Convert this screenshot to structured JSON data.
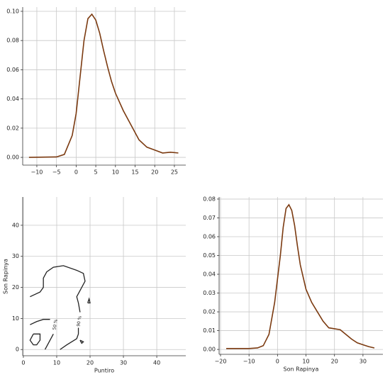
{
  "chart_data": [
    {
      "type": "line",
      "x": [
        -12,
        -5,
        -3,
        -1,
        0,
        1,
        2,
        3,
        4,
        5,
        6,
        7,
        8,
        9,
        10,
        12,
        14,
        16,
        18,
        20,
        22,
        24,
        26
      ],
      "series": [
        {
          "color": "#7b3a10",
          "values": [
            0,
            0.0003,
            0.002,
            0.015,
            0.03,
            0.055,
            0.08,
            0.095,
            0.098,
            0.094,
            0.085,
            0.073,
            0.062,
            0.052,
            0.044,
            0.032,
            0.022,
            0.012,
            0.007,
            0.005,
            0.003,
            0.0035,
            0.003
          ]
        }
      ],
      "xlim": [
        -13.6,
        27.9
      ],
      "ylim": [
        -0.0053,
        0.1029
      ],
      "xticks": [
        {
          "value": -10,
          "label": "−10"
        },
        {
          "value": -5,
          "label": "−5"
        },
        0,
        5,
        10,
        15,
        20,
        25
      ],
      "yticks": [
        {
          "value": 0,
          "label": "0.00"
        },
        {
          "value": 0.02,
          "label": "0.02"
        },
        {
          "value": 0.04,
          "label": "0.04"
        },
        {
          "value": 0.06,
          "label": "0.06"
        },
        {
          "value": 0.08,
          "label": "0.08"
        },
        {
          "value": 0.1,
          "label": "0.10"
        }
      ],
      "grid": true
    },
    {
      "type": "contour",
      "x_label": "Puntiro",
      "y_label": "Son Rapinya",
      "color": "#222222",
      "contours": [
        {
          "x": [
            2,
            5,
            6,
            6,
            7,
            9,
            12,
            16,
            18,
            18.5,
            17,
            16,
            16.5,
            17
          ],
          "y": [
            17,
            18.5,
            20,
            23,
            25,
            26.5,
            27,
            25.5,
            24.5,
            22,
            19,
            17,
            15,
            12
          ]
        },
        {
          "x": [
            2,
            4,
            6,
            8
          ],
          "y": [
            8,
            9,
            9.7,
            9.7
          ]
        },
        {
          "x": [
            3,
            5,
            5,
            4,
            3,
            2,
            3
          ],
          "y": [
            5,
            5,
            3,
            1.5,
            1.5,
            3,
            5
          ]
        },
        {
          "x": [
            6.5,
            7.5,
            8.5,
            9
          ],
          "y": [
            0,
            2,
            4,
            5
          ]
        },
        {
          "x": [
            11,
            13,
            16,
            16.5,
            16.5
          ],
          "y": [
            0,
            1.5,
            3.5,
            5,
            7
          ]
        },
        {
          "x": [
            17,
            18,
            17.5,
            17
          ],
          "y": [
            3,
            2.5,
            2,
            3
          ]
        },
        {
          "x": [
            19.3,
            19.7,
            20,
            19.3
          ],
          "y": [
            15,
            16.3,
            15,
            15
          ]
        }
      ],
      "level_labels": [
        {
          "text": "50 %",
          "x": 9.6,
          "y": 8
        },
        {
          "text": "90 %",
          "x": 16.8,
          "y": 9.1
        }
      ],
      "xlim": [
        -0.2,
        48.7
      ],
      "ylim": [
        -2,
        49.1
      ],
      "xticks": [
        0,
        10,
        20,
        30,
        40
      ],
      "yticks": [
        0,
        10,
        20,
        30,
        40
      ],
      "grid": true
    },
    {
      "type": "line",
      "x_label": "Son Rapinya",
      "x": [
        -18,
        -10,
        -7,
        -5,
        -3,
        -1,
        1,
        2,
        3,
        4,
        5,
        6,
        7,
        8,
        10,
        12,
        14,
        16,
        18,
        20,
        22,
        24,
        26,
        28,
        30,
        32,
        34
      ],
      "series": [
        {
          "color": "#7b3a10",
          "values": [
            0.0005,
            0.0005,
            0.0008,
            0.002,
            0.008,
            0.025,
            0.05,
            0.065,
            0.075,
            0.077,
            0.074,
            0.066,
            0.055,
            0.045,
            0.032,
            0.025,
            0.02,
            0.015,
            0.0115,
            0.011,
            0.0105,
            0.008,
            0.0055,
            0.0035,
            0.0025,
            0.0015,
            0.0008
          ]
        }
      ],
      "xlim": [
        -20.5,
        37
      ],
      "ylim": [
        -0.0026,
        0.0811
      ],
      "xticks": [
        {
          "value": -20,
          "label": "−20"
        },
        {
          "value": -10,
          "label": "−10"
        },
        0,
        10,
        20,
        30
      ],
      "yticks": [
        {
          "value": 0,
          "label": "0.00"
        },
        {
          "value": 0.01,
          "label": "0.01"
        },
        {
          "value": 0.02,
          "label": "0.02"
        },
        {
          "value": 0.03,
          "label": "0.03"
        },
        {
          "value": 0.04,
          "label": "0.04"
        },
        {
          "value": 0.05,
          "label": "0.05"
        },
        {
          "value": 0.06,
          "label": "0.06"
        },
        {
          "value": 0.07,
          "label": "0.07"
        },
        {
          "value": 0.08,
          "label": "0.08"
        }
      ],
      "grid": true
    }
  ]
}
